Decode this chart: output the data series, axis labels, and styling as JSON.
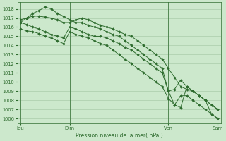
{
  "bg_color": "#cce8cc",
  "grid_color": "#aaccaa",
  "line_color": "#2d6b2d",
  "marker_color": "#2d6b2d",
  "xlabel": "Pression niveau de la mer( hPa )",
  "ylim": [
    1005.5,
    1018.7
  ],
  "ytick_min": 1006,
  "ytick_max": 1018,
  "xtick_labels": [
    "Jeu",
    "Dim",
    "Ven",
    "Sam"
  ],
  "xtick_positions": [
    0,
    8,
    24,
    32
  ],
  "day_vlines": [
    0,
    8,
    24,
    32
  ],
  "series": [
    [
      1016.5,
      1016.3,
      1016.0,
      1015.8,
      1015.5,
      1015.2,
      1015.0,
      1014.8,
      1016.0,
      1015.8,
      1015.5,
      1015.2,
      1015.0,
      1015.0,
      1014.8,
      1014.5,
      1014.2,
      1013.8,
      1013.5,
      1013.0,
      1012.5,
      1012.0,
      1011.5,
      1011.0,
      1009.0,
      1009.2,
      1010.2,
      1009.5,
      1009.0,
      1008.5,
      1008.0,
      1007.5,
      1007.0
    ],
    [
      1015.8,
      1015.6,
      1015.5,
      1015.3,
      1015.0,
      1014.8,
      1014.5,
      1014.2,
      1015.5,
      1015.2,
      1015.0,
      1014.8,
      1014.5,
      1014.2,
      1014.0,
      1013.5,
      1013.0,
      1012.5,
      1012.0,
      1011.5,
      1011.0,
      1010.5,
      1010.0,
      1009.5,
      1008.2,
      1007.5,
      1008.5,
      1008.5,
      1008.0,
      1007.5,
      1007.0,
      1006.5,
      1006.0
    ],
    [
      1016.8,
      1017.0,
      1017.2,
      1017.2,
      1017.1,
      1017.0,
      1016.8,
      1016.5,
      1016.5,
      1016.8,
      1017.0,
      1016.8,
      1016.5,
      1016.2,
      1016.0,
      1015.8,
      1015.5,
      1015.2,
      1015.0,
      1014.5,
      1014.0,
      1013.5,
      1013.0,
      1012.5,
      1011.5,
      1010.5,
      1009.5,
      1009.2,
      1009.0,
      1008.5,
      1008.0,
      1007.5,
      1007.0
    ],
    [
      1016.5,
      1017.0,
      1017.5,
      1017.8,
      1018.2,
      1018.0,
      1017.5,
      1017.2,
      1016.8,
      1016.5,
      1016.5,
      1016.2,
      1016.0,
      1015.8,
      1015.5,
      1015.2,
      1015.0,
      1014.5,
      1014.0,
      1013.5,
      1013.0,
      1012.5,
      1012.0,
      1011.5,
      1009.0,
      1007.5,
      1007.2,
      1009.5,
      1009.0,
      1008.5,
      1008.0,
      1006.5,
      1006.0
    ]
  ]
}
